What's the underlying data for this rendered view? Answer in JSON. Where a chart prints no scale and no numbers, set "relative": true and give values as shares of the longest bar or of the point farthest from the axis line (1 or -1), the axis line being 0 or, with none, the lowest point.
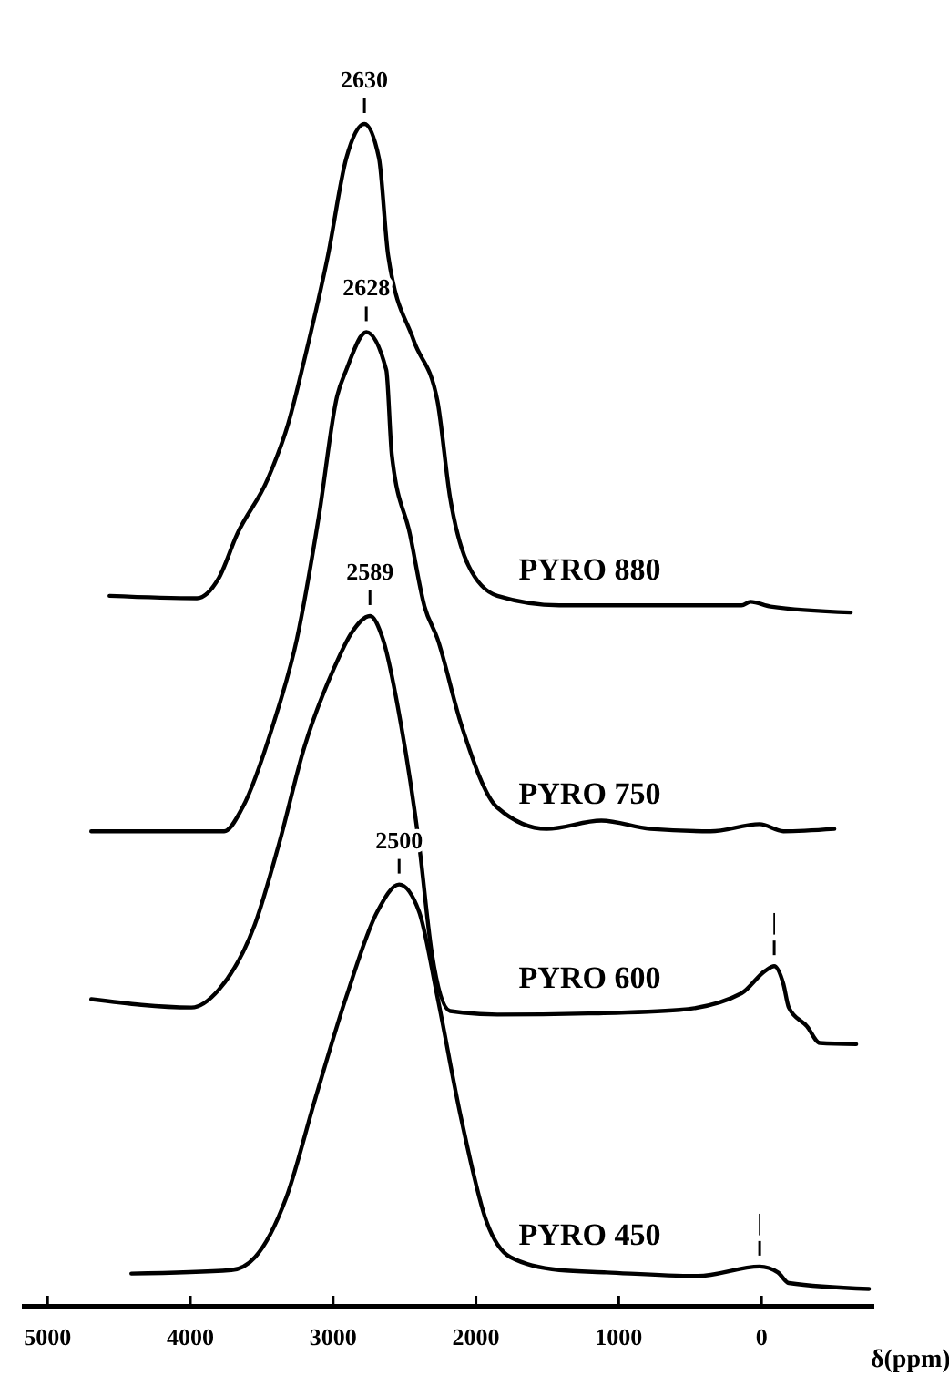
{
  "chart_data": {
    "type": "line",
    "relative": true,
    "xlabel": "δ(ppm)",
    "xlim": [
      5180,
      -790
    ],
    "xticks": [
      5000,
      4000,
      3000,
      2000,
      1000,
      0
    ],
    "marker": "none",
    "line_style": "solid",
    "grid": false,
    "tick_labels": "x",
    "annotations": [
      {
        "text": "2630",
        "x": 2781,
        "y": 1.0
      },
      {
        "text": "2628",
        "x": 2768,
        "y": 0.824
      },
      {
        "text": "2589",
        "x": 2742,
        "y": 0.584
      },
      {
        "text": "2500",
        "x": 2538,
        "y": 0.357
      },
      {
        "text": "|",
        "x": -89,
        "y": 0.288
      },
      {
        "text": "|",
        "x": 13,
        "y": 0.034
      }
    ],
    "series": [
      {
        "name": "PYRO 880",
        "color": "#000000",
        "x": [
          4566,
          3954,
          3801,
          3673,
          3457,
          3316,
          3189,
          3036,
          2908,
          2781,
          2679,
          2615,
          2436,
          2270,
          2181,
          2054,
          1850,
          1416,
          140,
          77,
          -64,
          -625
        ],
        "values": [
          0.601,
          0.599,
          0.616,
          0.653,
          0.7,
          0.746,
          0.807,
          0.889,
          0.971,
          1.0,
          0.971,
          0.889,
          0.817,
          0.766,
          0.684,
          0.627,
          0.601,
          0.593,
          0.593,
          0.596,
          0.592,
          0.587
        ]
      },
      {
        "name": "PYRO 750",
        "color": "#000000",
        "x": [
          4694,
          3763,
          3635,
          3418,
          3253,
          3099,
          2972,
          2908,
          2768,
          2628,
          2589,
          2462,
          2360,
          2270,
          2105,
          1850,
          1505,
          1122,
          778,
          357,
          13,
          -153,
          -510
        ],
        "values": [
          0.402,
          0.402,
          0.422,
          0.493,
          0.565,
          0.669,
          0.77,
          0.792,
          0.824,
          0.792,
          0.72,
          0.653,
          0.592,
          0.565,
          0.493,
          0.422,
          0.404,
          0.411,
          0.404,
          0.402,
          0.408,
          0.402,
          0.404
        ]
      },
      {
        "name": "PYRO 600",
        "color": "#000000",
        "x": [
          4694,
          3992,
          3801,
          3546,
          3380,
          3202,
          2997,
          2870,
          2742,
          2653,
          2526,
          2398,
          2309,
          2181,
          1850,
          1212,
          574,
          140,
          -26,
          -89,
          -153,
          -191,
          -319,
          -408,
          -663
        ],
        "values": [
          0.26,
          0.253,
          0.268,
          0.324,
          0.391,
          0.473,
          0.539,
          0.57,
          0.584,
          0.565,
          0.493,
          0.391,
          0.299,
          0.25,
          0.247,
          0.248,
          0.251,
          0.265,
          0.284,
          0.288,
          0.273,
          0.253,
          0.237,
          0.223,
          0.222
        ]
      },
      {
        "name": "PYRO 450",
        "color": "#000000",
        "x": [
          4413,
          3712,
          3546,
          3329,
          3125,
          2908,
          2691,
          2538,
          2398,
          2270,
          2105,
          1926,
          1760,
          1416,
          1084,
          446,
          13,
          -115,
          -191,
          -753
        ],
        "values": [
          0.028,
          0.031,
          0.042,
          0.092,
          0.176,
          0.262,
          0.334,
          0.357,
          0.334,
          0.262,
          0.16,
          0.072,
          0.042,
          0.031,
          0.029,
          0.026,
          0.034,
          0.029,
          0.02,
          0.015
        ]
      }
    ]
  }
}
